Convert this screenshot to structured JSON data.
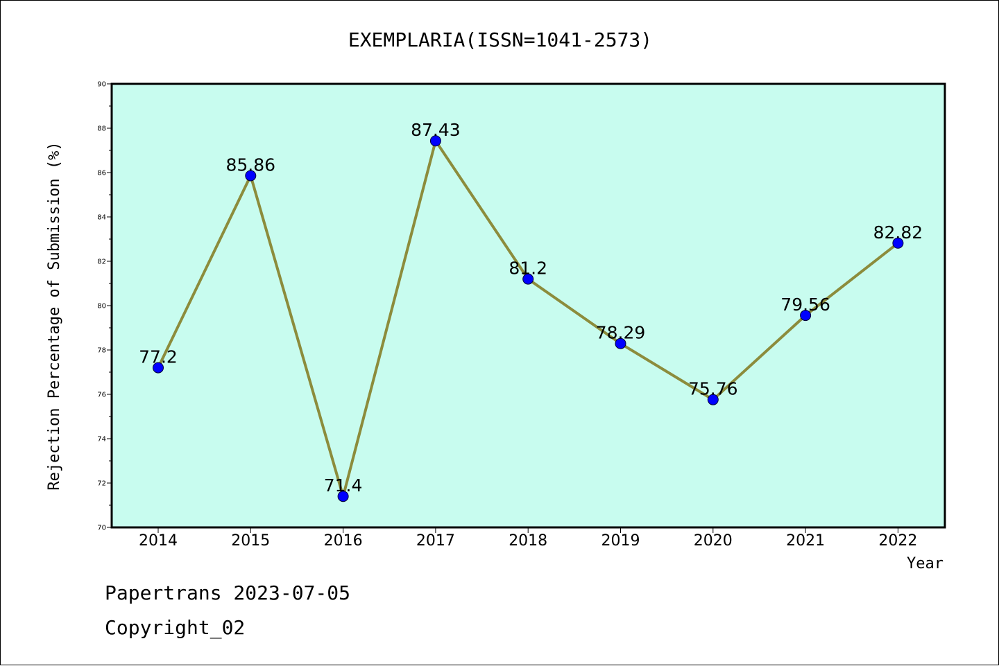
{
  "chart_data": {
    "type": "line",
    "title": "EXEMPLARIA(ISSN=1041-2573)",
    "xlabel": "Year",
    "ylabel": "Rejection Percentage of Submission (%)",
    "categories": [
      "2014",
      "2015",
      "2016",
      "2017",
      "2018",
      "2019",
      "2020",
      "2021",
      "2022"
    ],
    "values": [
      77.2,
      85.86,
      71.4,
      87.43,
      81.2,
      78.29,
      75.76,
      79.56,
      82.82
    ],
    "data_labels": [
      "77.2",
      "85.86",
      "71.4",
      "87.43",
      "81.2",
      "78.29",
      "75.76",
      "79.56",
      "82.82"
    ],
    "ylim": [
      70,
      90
    ],
    "yticks": [
      "70",
      "72",
      "74",
      "76",
      "78",
      "80",
      "82",
      "84",
      "86",
      "88",
      "90"
    ],
    "grid": false,
    "legend": "none",
    "colors": {
      "plot_background": "#c8fcef",
      "line": "#8c8c3c",
      "marker": "#0000ff"
    }
  },
  "footer": {
    "line1": "Papertrans 2023-07-05",
    "line2": "Copyright_02"
  }
}
